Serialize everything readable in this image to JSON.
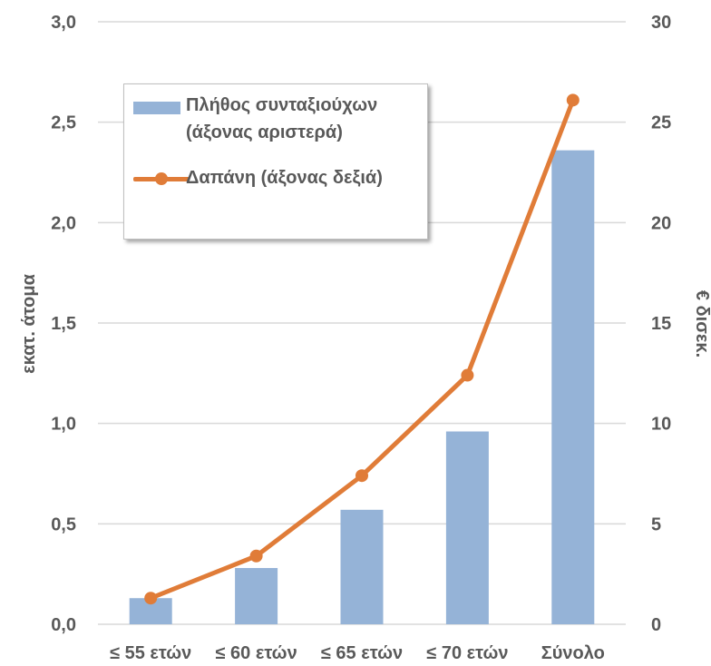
{
  "chart_data": {
    "type": "bar+line",
    "categories": [
      "≤ 55 ετών",
      "≤ 60 ετών",
      "≤ 65 ετών",
      "≤ 70 ετών",
      "Σύνολο"
    ],
    "series": [
      {
        "name": "Πλήθος συνταξιούχων (άξονας αριστερά)",
        "type": "bar",
        "axis": "left",
        "color": "#95b3d7",
        "values": [
          0.13,
          0.28,
          0.57,
          0.96,
          2.36
        ]
      },
      {
        "name": "Δαπάνη (άξονας δεξιά)",
        "type": "line",
        "axis": "right",
        "color": "#e07c38",
        "values": [
          1.3,
          3.4,
          7.4,
          12.4,
          26.1
        ]
      }
    ],
    "ylabel_left": "εκατ. άτομα",
    "ylabel_right": "€ δισεκ.",
    "ylim_left": [
      0,
      3
    ],
    "ylim_right": [
      0,
      30
    ],
    "yticks_left": [
      "0,0",
      "0,5",
      "1,0",
      "1,5",
      "2,0",
      "2,5",
      "3,0"
    ],
    "yticks_right": [
      "0",
      "5",
      "10",
      "15",
      "20",
      "25",
      "30"
    ],
    "grid": true,
    "legend_position": "top-left"
  },
  "legend": {
    "bar_label": "Πλήθος συνταξιούχων (άξονας αριστερά)",
    "line_label": "Δαπάνη (άξονας δεξιά)"
  }
}
